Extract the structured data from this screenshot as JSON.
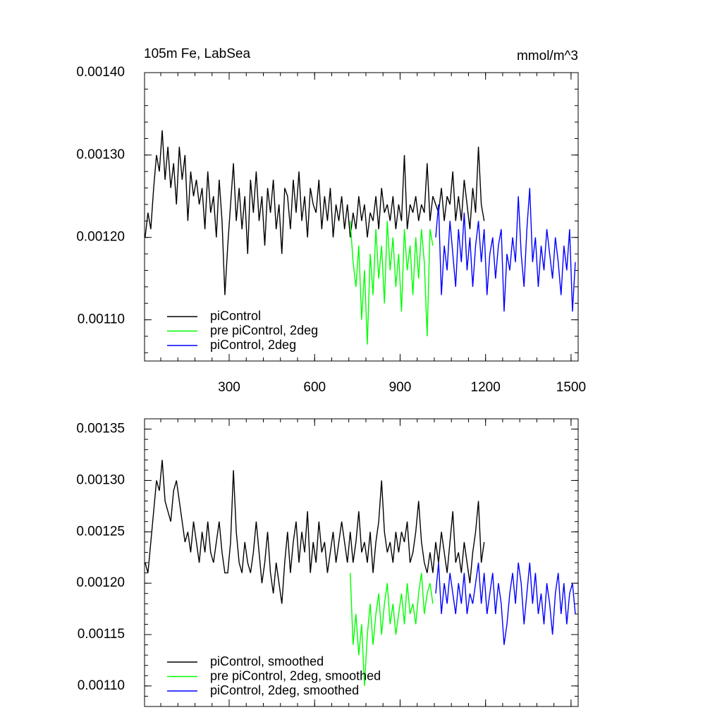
{
  "chart_data": [
    {
      "type": "line",
      "title": "105m Fe, LabSea",
      "units_label": "mmol/m^3",
      "xlim": [
        3,
        1525
      ],
      "xticks": [
        300,
        600,
        900,
        1200,
        1500
      ],
      "xtick_labels": true,
      "ylim": [
        0.00105,
        0.0014
      ],
      "yticks": [
        {
          "value": 0.0011,
          "label": "0.00110"
        },
        {
          "value": 0.0012,
          "label": "0.00120"
        },
        {
          "value": 0.0013,
          "label": "0.00130"
        },
        {
          "value": 0.0014,
          "label": "0.00140"
        }
      ],
      "minor_per_major": 5,
      "legend": "lower left",
      "series": [
        {
          "name": "piControl",
          "color": "#000000",
          "x": [
            5,
            15,
            25,
            35,
            45,
            55,
            65,
            75,
            85,
            95,
            105,
            115,
            125,
            135,
            145,
            155,
            165,
            175,
            185,
            195,
            205,
            215,
            225,
            235,
            245,
            255,
            265,
            275,
            285,
            295,
            305,
            315,
            325,
            335,
            345,
            355,
            365,
            375,
            385,
            395,
            405,
            415,
            425,
            435,
            445,
            455,
            465,
            475,
            485,
            495,
            505,
            515,
            525,
            535,
            545,
            555,
            565,
            575,
            585,
            595,
            605,
            615,
            625,
            635,
            645,
            655,
            665,
            675,
            685,
            695,
            705,
            715,
            725,
            735,
            745,
            755,
            765,
            775,
            785,
            795,
            805,
            815,
            825,
            835,
            845,
            855,
            865,
            875,
            885,
            895,
            905,
            915,
            925,
            935,
            945,
            955,
            965,
            975,
            985,
            995,
            1005,
            1015,
            1025,
            1035,
            1045,
            1055,
            1065,
            1075,
            1085,
            1095,
            1105,
            1115,
            1125,
            1135,
            1145,
            1155,
            1165,
            1175,
            1185,
            1195
          ],
          "values": [
            0.0012,
            0.00123,
            0.00121,
            0.00126,
            0.0013,
            0.00128,
            0.00133,
            0.00127,
            0.00131,
            0.00126,
            0.00129,
            0.00124,
            0.00131,
            0.00127,
            0.0013,
            0.00122,
            0.00128,
            0.00125,
            0.00127,
            0.00124,
            0.00126,
            0.00121,
            0.00128,
            0.00123,
            0.00125,
            0.0012,
            0.00127,
            0.00122,
            0.00113,
            0.00119,
            0.00124,
            0.00129,
            0.00122,
            0.00126,
            0.00121,
            0.00125,
            0.00118,
            0.00127,
            0.00123,
            0.00128,
            0.00122,
            0.00125,
            0.00119,
            0.00126,
            0.00123,
            0.00127,
            0.00121,
            0.00124,
            0.00118,
            0.00126,
            0.00125,
            0.00121,
            0.00127,
            0.00123,
            0.00128,
            0.00122,
            0.00125,
            0.0012,
            0.00126,
            0.00124,
            0.00123,
            0.00127,
            0.00121,
            0.00125,
            0.00122,
            0.00126,
            0.0012,
            0.00124,
            0.00122,
            0.00125,
            0.00121,
            0.00124,
            0.0012,
            0.00123,
            0.00121,
            0.00125,
            0.00122,
            0.00124,
            0.0012,
            0.00123,
            0.00122,
            0.00125,
            0.00121,
            0.00126,
            0.00123,
            0.00124,
            0.00122,
            0.00125,
            0.00121,
            0.00124,
            0.00122,
            0.0013,
            0.00121,
            0.00124,
            0.00123,
            0.00125,
            0.00122,
            0.00124,
            0.00123,
            0.00129,
            0.00122,
            0.00125,
            0.00124,
            0.00123,
            0.00126,
            0.00122,
            0.00125,
            0.00124,
            0.00128,
            0.00122,
            0.00125,
            0.00122,
            0.00127,
            0.00124,
            0.00121,
            0.00126,
            0.00123,
            0.00131,
            0.00124,
            0.00122
          ]
        },
        {
          "name": "pre piControl, 2deg",
          "color": "#00ff00",
          "x": [
            725,
            735,
            745,
            755,
            765,
            775,
            785,
            795,
            805,
            815,
            825,
            835,
            845,
            855,
            865,
            875,
            885,
            895,
            905,
            915,
            925,
            935,
            945,
            955,
            965,
            975,
            985,
            995,
            1005,
            1015
          ],
          "values": [
            0.00122,
            0.00117,
            0.00114,
            0.00119,
            0.0011,
            0.00116,
            0.00107,
            0.00118,
            0.00113,
            0.00121,
            0.00115,
            0.00119,
            0.00112,
            0.00122,
            0.00116,
            0.0012,
            0.00114,
            0.00118,
            0.00111,
            0.00121,
            0.00116,
            0.00119,
            0.00113,
            0.0012,
            0.00115,
            0.00121,
            0.00117,
            0.00108,
            0.00121,
            0.00119
          ]
        },
        {
          "name": "piControl, 2deg",
          "color": "#0000ff",
          "x": [
            1025,
            1035,
            1045,
            1055,
            1065,
            1075,
            1085,
            1095,
            1105,
            1115,
            1125,
            1135,
            1145,
            1155,
            1165,
            1175,
            1185,
            1195,
            1205,
            1215,
            1225,
            1235,
            1245,
            1255,
            1265,
            1275,
            1285,
            1295,
            1305,
            1315,
            1325,
            1335,
            1345,
            1355,
            1365,
            1375,
            1385,
            1395,
            1405,
            1415,
            1425,
            1435,
            1445,
            1455,
            1465,
            1475,
            1485,
            1495,
            1505,
            1515
          ],
          "values": [
            0.0012,
            0.00124,
            0.00113,
            0.00119,
            0.00116,
            0.00122,
            0.00118,
            0.00114,
            0.00121,
            0.00117,
            0.00123,
            0.00116,
            0.0012,
            0.00114,
            0.00119,
            0.00122,
            0.00117,
            0.00121,
            0.00113,
            0.00118,
            0.0012,
            0.00115,
            0.00119,
            0.00121,
            0.00111,
            0.00118,
            0.00116,
            0.0012,
            0.00117,
            0.00125,
            0.00118,
            0.00114,
            0.00121,
            0.00126,
            0.00117,
            0.0012,
            0.00114,
            0.00119,
            0.00116,
            0.00121,
            0.00118,
            0.00115,
            0.0012,
            0.00117,
            0.00113,
            0.00119,
            0.00116,
            0.00121,
            0.00111,
            0.00117
          ]
        }
      ]
    },
    {
      "type": "line",
      "xlim": [
        3,
        1525
      ],
      "xticks": [
        300,
        600,
        900,
        1200,
        1500
      ],
      "xtick_labels": false,
      "ylim": [
        0.00108,
        0.00136
      ],
      "yticks": [
        {
          "value": 0.0011,
          "label": "0.00110"
        },
        {
          "value": 0.00115,
          "label": "0.00115"
        },
        {
          "value": 0.0012,
          "label": "0.00120"
        },
        {
          "value": 0.00125,
          "label": "0.00125"
        },
        {
          "value": 0.0013,
          "label": "0.00130"
        },
        {
          "value": 0.00135,
          "label": "0.00135"
        }
      ],
      "minor_per_major": 5,
      "legend": "lower left",
      "series": [
        {
          "name": "piControl, smoothed",
          "color": "#000000",
          "x": [
            5,
            15,
            25,
            35,
            45,
            55,
            65,
            75,
            85,
            95,
            105,
            115,
            125,
            135,
            145,
            155,
            165,
            175,
            185,
            195,
            205,
            215,
            225,
            235,
            245,
            255,
            265,
            275,
            285,
            295,
            305,
            315,
            325,
            335,
            345,
            355,
            365,
            375,
            385,
            395,
            405,
            415,
            425,
            435,
            445,
            455,
            465,
            475,
            485,
            495,
            505,
            515,
            525,
            535,
            545,
            555,
            565,
            575,
            585,
            595,
            605,
            615,
            625,
            635,
            645,
            655,
            665,
            675,
            685,
            695,
            705,
            715,
            725,
            735,
            745,
            755,
            765,
            775,
            785,
            795,
            805,
            815,
            825,
            835,
            845,
            855,
            865,
            875,
            885,
            895,
            905,
            915,
            925,
            935,
            945,
            955,
            965,
            975,
            985,
            995,
            1005,
            1015,
            1025,
            1035,
            1045,
            1055,
            1065,
            1075,
            1085,
            1095,
            1105,
            1115,
            1125,
            1135,
            1145,
            1155,
            1165,
            1175,
            1185,
            1195
          ],
          "values": [
            0.00122,
            0.00121,
            0.00124,
            0.00127,
            0.0013,
            0.00129,
            0.00132,
            0.00128,
            0.00127,
            0.00126,
            0.00129,
            0.0013,
            0.00128,
            0.00126,
            0.00124,
            0.00125,
            0.00123,
            0.00126,
            0.00124,
            0.00122,
            0.00125,
            0.00123,
            0.00126,
            0.00123,
            0.00122,
            0.00124,
            0.00126,
            0.00123,
            0.00121,
            0.00121,
            0.00124,
            0.00131,
            0.00125,
            0.00122,
            0.00121,
            0.00124,
            0.00122,
            0.00121,
            0.00123,
            0.00126,
            0.00123,
            0.0012,
            0.00122,
            0.00125,
            0.00121,
            0.00119,
            0.00122,
            0.0012,
            0.00118,
            0.00122,
            0.00125,
            0.00121,
            0.00124,
            0.00126,
            0.00122,
            0.00125,
            0.00123,
            0.00127,
            0.00121,
            0.00124,
            0.00122,
            0.00126,
            0.00123,
            0.00124,
            0.00121,
            0.00123,
            0.00125,
            0.00122,
            0.00124,
            0.00126,
            0.00124,
            0.00122,
            0.00125,
            0.00122,
            0.00124,
            0.00127,
            0.00123,
            0.00124,
            0.00122,
            0.00125,
            0.00121,
            0.00124,
            0.00126,
            0.0013,
            0.00125,
            0.00123,
            0.00124,
            0.00122,
            0.00125,
            0.00123,
            0.00125,
            0.00124,
            0.00126,
            0.00122,
            0.00123,
            0.00125,
            0.00128,
            0.00124,
            0.00122,
            0.00121,
            0.00123,
            0.00121,
            0.00124,
            0.00122,
            0.00125,
            0.00123,
            0.00121,
            0.00124,
            0.00127,
            0.00122,
            0.00123,
            0.00121,
            0.00124,
            0.00122,
            0.0012,
            0.00123,
            0.00125,
            0.00128,
            0.00122,
            0.00124
          ]
        },
        {
          "name": "pre piControl, 2deg, smoothed",
          "color": "#00ff00",
          "x": [
            725,
            735,
            745,
            755,
            765,
            775,
            785,
            795,
            805,
            815,
            825,
            835,
            845,
            855,
            865,
            875,
            885,
            895,
            905,
            915,
            925,
            935,
            945,
            955,
            965,
            975,
            985,
            995,
            1005,
            1015
          ],
          "values": [
            0.00121,
            0.00114,
            0.00117,
            0.00113,
            0.00116,
            0.0011,
            0.00115,
            0.00118,
            0.00114,
            0.00117,
            0.00119,
            0.00115,
            0.00118,
            0.0012,
            0.00116,
            0.00118,
            0.00115,
            0.00117,
            0.00119,
            0.00116,
            0.0012,
            0.00117,
            0.00118,
            0.00116,
            0.00119,
            0.00121,
            0.00117,
            0.00119,
            0.0012,
            0.00118
          ]
        },
        {
          "name": "piControl, 2deg, smoothed",
          "color": "#0000ff",
          "x": [
            1025,
            1035,
            1045,
            1055,
            1065,
            1075,
            1085,
            1095,
            1105,
            1115,
            1125,
            1135,
            1145,
            1155,
            1165,
            1175,
            1185,
            1195,
            1205,
            1215,
            1225,
            1235,
            1245,
            1255,
            1265,
            1275,
            1285,
            1295,
            1305,
            1315,
            1325,
            1335,
            1345,
            1355,
            1365,
            1375,
            1385,
            1395,
            1405,
            1415,
            1425,
            1435,
            1445,
            1455,
            1465,
            1475,
            1485,
            1495,
            1505,
            1515
          ],
          "values": [
            0.00119,
            0.00122,
            0.00117,
            0.0012,
            0.00118,
            0.00121,
            0.00119,
            0.00117,
            0.0012,
            0.00118,
            0.00121,
            0.00117,
            0.00119,
            0.00118,
            0.0012,
            0.00122,
            0.00118,
            0.00121,
            0.00117,
            0.00119,
            0.00121,
            0.00117,
            0.0012,
            0.00118,
            0.00114,
            0.00116,
            0.00119,
            0.00121,
            0.00118,
            0.00122,
            0.0012,
            0.00116,
            0.00119,
            0.00122,
            0.00118,
            0.00121,
            0.00117,
            0.00119,
            0.00116,
            0.0012,
            0.00118,
            0.00115,
            0.00119,
            0.00121,
            0.00117,
            0.0012,
            0.00116,
            0.00119,
            0.0012,
            0.00117
          ]
        }
      ]
    }
  ]
}
